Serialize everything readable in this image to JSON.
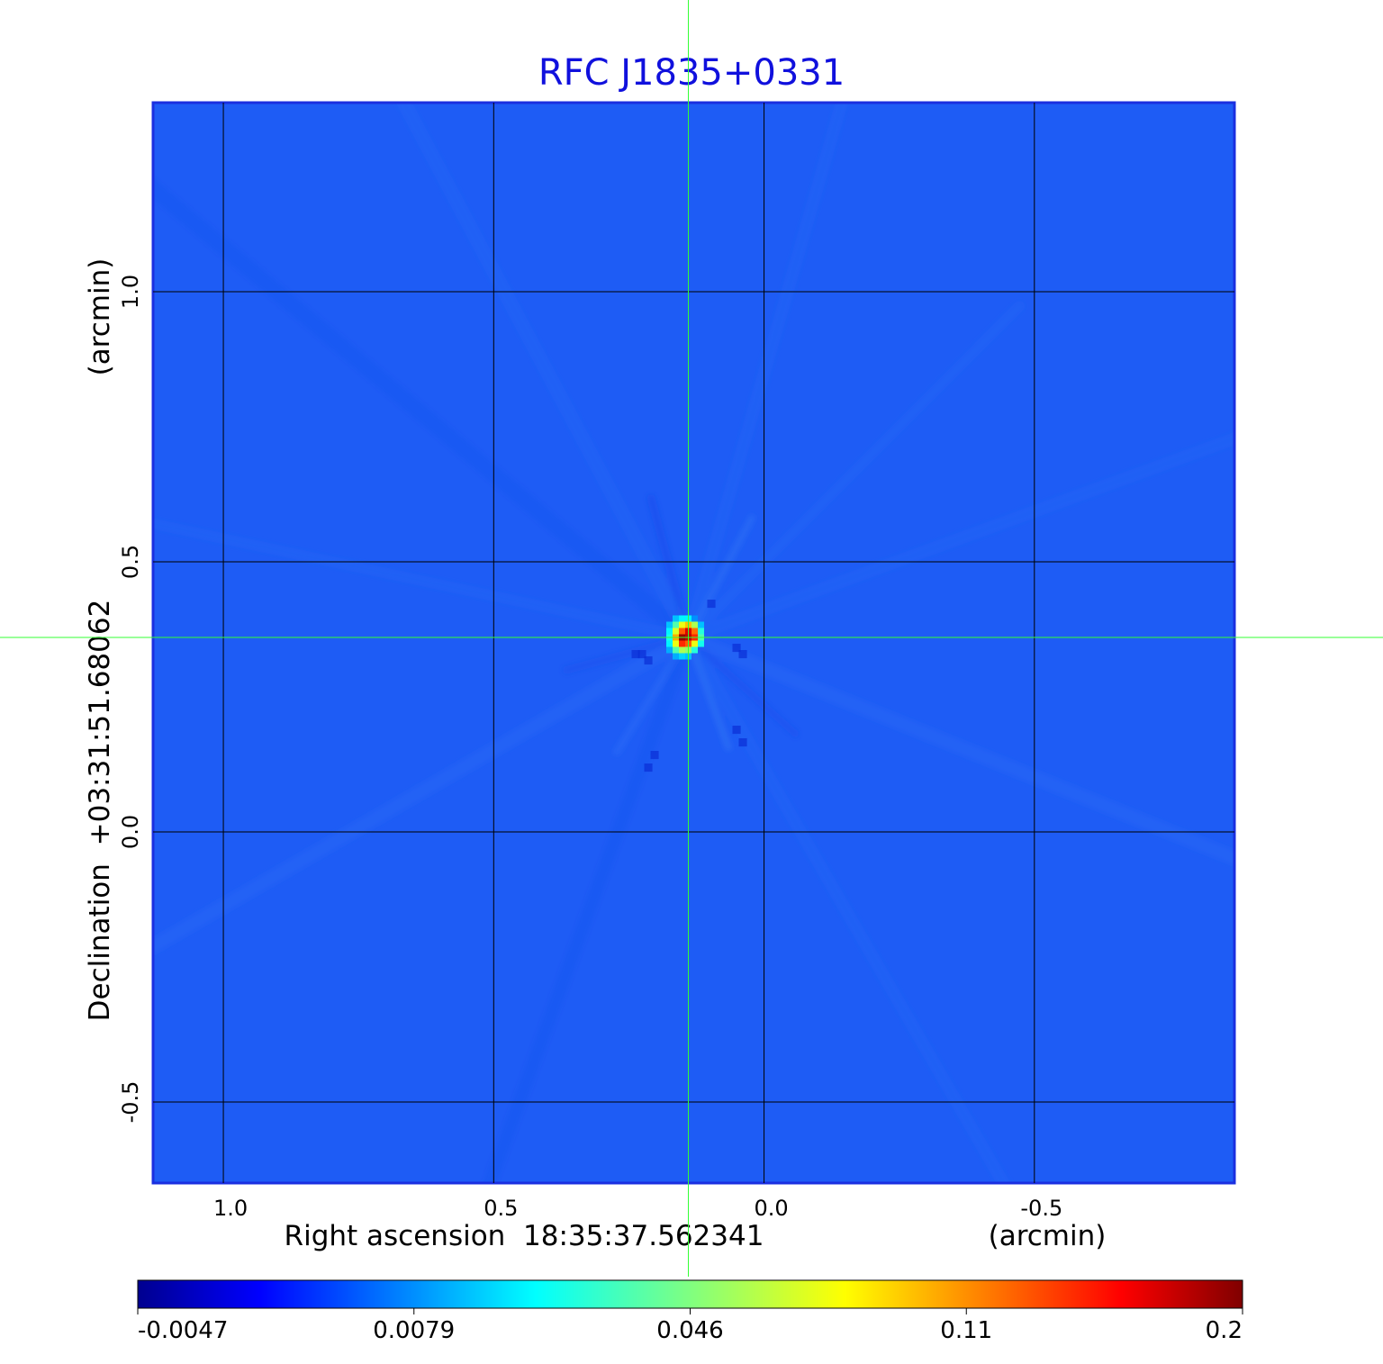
{
  "chart_data": {
    "type": "heatmap",
    "title": "RFC J1835+0331",
    "xlabel": "Right ascension  18:35:37.562341",
    "xunit": "(arcmin)",
    "ylabel": "Declination  +03:31:51.68062",
    "yunit": "(arcmin)",
    "x_axis": {
      "direction": "decreasing-right",
      "xlim": [
        1.13,
        -0.87
      ],
      "ticks": [
        1.0,
        0.5,
        0.0,
        -0.5
      ],
      "tick_labels": [
        "1.0",
        "0.5",
        "0.0",
        "-0.5"
      ]
    },
    "y_axis": {
      "ylim": [
        -0.65,
        1.35
      ],
      "ticks": [
        -0.5,
        0.0,
        0.5,
        1.0
      ],
      "tick_labels": [
        "-0.5",
        "0.0",
        "0.5",
        "1.0"
      ]
    },
    "grid": true,
    "grid_color": "#000000",
    "crosshair": {
      "x": 0.14,
      "y": 0.36,
      "color": "#33ff33"
    },
    "source_peak": {
      "x": 0.14,
      "y": 0.36,
      "value": 0.2
    },
    "background_level": -0.002,
    "colorbar": {
      "colormap": "jet",
      "range": [
        -0.0047,
        0.2
      ],
      "tick_labels": [
        "-0.0047",
        "0.0079",
        "0.046",
        "0.11",
        "0.2"
      ]
    },
    "colors": {
      "title": "#1010dd",
      "frame": "#1a2fe0",
      "background_map": "#1e5cf5"
    }
  }
}
